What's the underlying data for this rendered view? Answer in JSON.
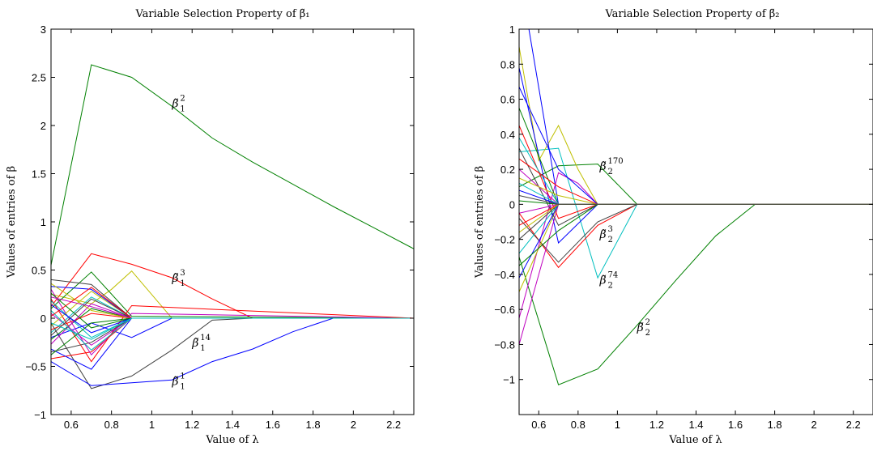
{
  "chart_data": [
    {
      "type": "line",
      "title": "Variable Selection Property of β̃₁",
      "xlabel": "Value of λ",
      "ylabel": "Values of entries of β",
      "xlim": [
        0.5,
        2.3
      ],
      "ylim": [
        -1,
        3
      ],
      "xticks": [
        0.6,
        0.8,
        1,
        1.2,
        1.4,
        1.6,
        1.8,
        2,
        2.2
      ],
      "xtick_labels": [
        "0.6",
        "0.8",
        "1",
        "1.2",
        "1.4",
        "1.6",
        "1.8",
        "2",
        "2.2"
      ],
      "yticks": [
        -1,
        -0.5,
        0,
        0.5,
        1,
        1.5,
        2,
        2.5,
        3
      ],
      "ytick_labels": [
        "−1",
        "−0.5",
        "0",
        "0.5",
        "1",
        "1.5",
        "2",
        "2.5",
        "3"
      ],
      "grid": false,
      "series": [
        {
          "color": "#008000",
          "x": [
            0.5,
            0.7,
            0.9,
            1.1,
            1.3,
            1.5,
            1.7,
            1.9,
            2.1,
            2.3
          ],
          "y": [
            0.55,
            2.63,
            2.5,
            2.2,
            1.87,
            1.62,
            1.39,
            1.16,
            0.94,
            0.72
          ]
        },
        {
          "color": "#ff0000",
          "x": [
            0.5,
            0.7,
            0.9,
            1.1,
            1.3,
            1.5,
            2.3
          ],
          "y": [
            0.12,
            0.67,
            0.56,
            0.42,
            0.2,
            0.0,
            0.0
          ]
        },
        {
          "color": "#bfbf00",
          "x": [
            0.5,
            0.7,
            0.8,
            0.9,
            1.1,
            2.3
          ],
          "y": [
            0.25,
            0.15,
            0.3,
            0.49,
            0.0,
            0.0
          ]
        },
        {
          "color": "#404040",
          "x": [
            0.5,
            0.7,
            0.9,
            1.1,
            1.3,
            1.5,
            2.3
          ],
          "y": [
            -0.05,
            -0.73,
            -0.6,
            -0.33,
            -0.02,
            0.0,
            0.0
          ]
        },
        {
          "color": "#0000ff",
          "x": [
            0.5,
            0.7,
            0.9,
            1.1,
            1.3,
            1.5,
            1.7,
            1.9,
            2.3
          ],
          "y": [
            -0.45,
            -0.7,
            -0.67,
            -0.64,
            -0.45,
            -0.32,
            -0.14,
            0.0,
            0.0
          ]
        },
        {
          "color": "#008000",
          "x": [
            0.5,
            0.7,
            0.9,
            2.3
          ],
          "y": [
            0.1,
            0.48,
            0.02,
            0.0
          ]
        },
        {
          "color": "#0000ff",
          "x": [
            0.5,
            0.7,
            0.9,
            1.1,
            2.3
          ],
          "y": [
            -0.2,
            -0.05,
            -0.2,
            0.0,
            0.0
          ]
        },
        {
          "color": "#ff0000",
          "x": [
            0.5,
            0.7,
            0.9,
            2.3
          ],
          "y": [
            -0.42,
            -0.35,
            0.0,
            0.0
          ]
        },
        {
          "color": "#bf00bf",
          "x": [
            0.5,
            0.7,
            0.9,
            2.3
          ],
          "y": [
            0.3,
            -0.38,
            0.05,
            0.0
          ]
        },
        {
          "color": "#00bfbf",
          "x": [
            0.5,
            0.7,
            0.9,
            2.3
          ],
          "y": [
            -0.15,
            0.22,
            0.0,
            0.0
          ]
        },
        {
          "color": "#0000ff",
          "x": [
            0.5,
            0.7,
            0.9,
            2.3
          ],
          "y": [
            -0.32,
            -0.53,
            0.0,
            0.0
          ]
        },
        {
          "color": "#404040",
          "x": [
            0.5,
            0.7,
            0.9,
            2.3
          ],
          "y": [
            0.4,
            0.35,
            0.0,
            0.0
          ]
        },
        {
          "color": "#ff0000",
          "x": [
            0.5,
            0.7,
            0.9,
            2.3
          ],
          "y": [
            0.2,
            -0.45,
            0.13,
            0.0
          ]
        },
        {
          "color": "#008000",
          "x": [
            0.5,
            0.7,
            0.9,
            2.3
          ],
          "y": [
            -0.22,
            0.1,
            0.0,
            0.0
          ]
        },
        {
          "color": "#bf00bf",
          "x": [
            0.5,
            0.7,
            0.9,
            2.3
          ],
          "y": [
            0.05,
            -0.28,
            0.0,
            0.0
          ]
        },
        {
          "color": "#00bfbf",
          "x": [
            0.5,
            0.7,
            0.9,
            2.3
          ],
          "y": [
            0.18,
            -0.2,
            0.0,
            0.0
          ]
        },
        {
          "color": "#bfbf00",
          "x": [
            0.5,
            0.7,
            0.9,
            2.3
          ],
          "y": [
            -0.08,
            0.28,
            0.0,
            0.0
          ]
        },
        {
          "color": "#404040",
          "x": [
            0.5,
            0.7,
            0.9,
            2.3
          ],
          "y": [
            -0.35,
            -0.25,
            0.0,
            0.0
          ]
        },
        {
          "color": "#0000ff",
          "x": [
            0.5,
            0.7,
            0.9,
            2.3
          ],
          "y": [
            0.33,
            0.3,
            0.0,
            0.0
          ]
        },
        {
          "color": "#ff0000",
          "x": [
            0.5,
            0.7,
            0.9,
            2.3
          ],
          "y": [
            -0.12,
            0.05,
            0.0,
            0.0
          ]
        },
        {
          "color": "#008000",
          "x": [
            0.5,
            0.7,
            0.9,
            2.3
          ],
          "y": [
            0.26,
            -0.1,
            0.0,
            0.0
          ]
        },
        {
          "color": "#bf00bf",
          "x": [
            0.5,
            0.7,
            0.9,
            2.3
          ],
          "y": [
            -0.27,
            0.15,
            0.0,
            0.0
          ]
        },
        {
          "color": "#00bfbf",
          "x": [
            0.5,
            0.7,
            0.9,
            2.3
          ],
          "y": [
            0.08,
            -0.33,
            0.0,
            0.0
          ]
        },
        {
          "color": "#bfbf00",
          "x": [
            0.5,
            0.7,
            0.9,
            2.3
          ],
          "y": [
            0.36,
            0.08,
            0.0,
            0.0
          ]
        },
        {
          "color": "#404040",
          "x": [
            0.5,
            0.7,
            0.9,
            2.3
          ],
          "y": [
            -0.18,
            0.2,
            0.0,
            0.0
          ]
        },
        {
          "color": "#0000ff",
          "x": [
            0.5,
            0.7,
            0.9,
            2.3
          ],
          "y": [
            0.14,
            -0.15,
            0.0,
            0.0
          ]
        },
        {
          "color": "#ff0000",
          "x": [
            0.5,
            0.7,
            0.9,
            2.3
          ],
          "y": [
            0.02,
            0.32,
            0.0,
            0.0
          ]
        },
        {
          "color": "#008000",
          "x": [
            0.5,
            0.7,
            0.9,
            2.3
          ],
          "y": [
            -0.38,
            -0.05,
            0.0,
            0.0
          ]
        },
        {
          "color": "#bf00bf",
          "x": [
            0.5,
            0.7,
            0.9,
            2.3
          ],
          "y": [
            0.22,
            0.12,
            0.0,
            0.0
          ]
        },
        {
          "color": "#00bfbf",
          "x": [
            0.5,
            0.7,
            0.9,
            2.3
          ],
          "y": [
            -0.05,
            -0.22,
            0.0,
            0.0
          ]
        }
      ],
      "annotations": [
        {
          "base": "β̃",
          "sub": "1",
          "sup": "2",
          "x": 1.1,
          "y": 2.23
        },
        {
          "base": "β̃",
          "sub": "1",
          "sup": "3",
          "x": 1.1,
          "y": 0.42
        },
        {
          "base": "β̃",
          "sub": "1",
          "sup": "14",
          "x": 1.2,
          "y": -0.25
        },
        {
          "base": "β̃",
          "sub": "1",
          "sup": "1",
          "x": 1.1,
          "y": -0.65
        }
      ]
    },
    {
      "type": "line",
      "title": "Variable Selection Property of β̃₂",
      "xlabel": "Value of λ",
      "ylabel": "Values of entries of β",
      "xlim": [
        0.5,
        2.3
      ],
      "ylim": [
        -1.2,
        1
      ],
      "xticks": [
        0.6,
        0.8,
        1,
        1.2,
        1.4,
        1.6,
        1.8,
        2,
        2.2
      ],
      "xtick_labels": [
        "0.6",
        "0.8",
        "1",
        "1.2",
        "1.4",
        "1.6",
        "1.8",
        "2",
        "2.2"
      ],
      "yticks": [
        -1,
        -0.8,
        -0.6,
        -0.4,
        -0.2,
        0,
        0.2,
        0.4,
        0.6,
        0.8,
        1
      ],
      "ytick_labels": [
        "−1",
        "−0.8",
        "−0.6",
        "−0.4",
        "−0.2",
        "0",
        "0.2",
        "0.4",
        "0.6",
        "0.8",
        "1"
      ],
      "grid": false,
      "series": [
        {
          "color": "#008000",
          "x": [
            0.5,
            0.7,
            0.9,
            1.1,
            1.3,
            1.5,
            1.7,
            2.3
          ],
          "y": [
            -0.3,
            -1.03,
            -0.94,
            -0.69,
            -0.43,
            -0.18,
            0.0,
            0.0
          ]
        },
        {
          "color": "#008000",
          "x": [
            0.5,
            0.7,
            0.9,
            1.1,
            2.3
          ],
          "y": [
            0.1,
            0.22,
            0.23,
            0.0,
            0.0
          ]
        },
        {
          "color": "#00bfbf",
          "x": [
            0.5,
            0.7,
            0.9,
            1.1,
            2.3
          ],
          "y": [
            0.3,
            0.32,
            -0.42,
            0.0,
            0.0
          ]
        },
        {
          "color": "#ff0000",
          "x": [
            0.5,
            0.7,
            0.9,
            1.1,
            2.3
          ],
          "y": [
            -0.05,
            -0.36,
            -0.12,
            0.0,
            0.0
          ]
        },
        {
          "color": "#404040",
          "x": [
            0.5,
            0.7,
            0.9,
            1.1,
            2.3
          ],
          "y": [
            -0.08,
            -0.33,
            -0.1,
            0.0,
            0.0
          ]
        },
        {
          "color": "#bfbf00",
          "x": [
            0.5,
            0.6,
            0.7,
            0.8,
            0.9,
            2.3
          ],
          "y": [
            0.9,
            0.25,
            0.45,
            0.2,
            0.0,
            0.0
          ]
        },
        {
          "color": "#0000ff",
          "x": [
            0.5,
            0.55,
            0.7,
            2.3
          ],
          "y": [
            1.0,
            1.0,
            0.0,
            0.0
          ]
        },
        {
          "color": "#0000ff",
          "x": [
            0.5,
            0.7,
            0.9,
            2.3
          ],
          "y": [
            0.78,
            -0.22,
            0.0,
            0.0
          ]
        },
        {
          "color": "#bf00bf",
          "x": [
            0.5,
            0.7,
            2.3
          ],
          "y": [
            -0.8,
            0.0,
            0.0
          ]
        },
        {
          "color": "#bf00bf",
          "x": [
            0.5,
            0.7,
            0.8,
            0.9,
            2.3
          ],
          "y": [
            -0.65,
            0.18,
            0.12,
            0.0,
            0.0
          ]
        },
        {
          "color": "#0000ff",
          "x": [
            0.5,
            0.7,
            0.9,
            2.3
          ],
          "y": [
            0.67,
            0.2,
            0.0,
            0.0
          ]
        },
        {
          "color": "#008000",
          "x": [
            0.5,
            0.7,
            2.3
          ],
          "y": [
            0.55,
            0.0,
            0.0
          ]
        },
        {
          "color": "#ff0000",
          "x": [
            0.5,
            0.7,
            0.9,
            2.3
          ],
          "y": [
            0.45,
            -0.08,
            0.0,
            0.0
          ]
        },
        {
          "color": "#00bfbf",
          "x": [
            0.5,
            0.7,
            2.3
          ],
          "y": [
            0.38,
            0.0,
            0.0
          ]
        },
        {
          "color": "#bfbf00",
          "x": [
            0.5,
            0.7,
            2.3
          ],
          "y": [
            -0.5,
            0.0,
            0.0
          ]
        },
        {
          "color": "#404040",
          "x": [
            0.5,
            0.7,
            0.9,
            2.3
          ],
          "y": [
            0.32,
            -0.12,
            0.0,
            0.0
          ]
        },
        {
          "color": "#0000ff",
          "x": [
            0.5,
            0.7,
            2.3
          ],
          "y": [
            -0.42,
            0.0,
            0.0
          ]
        },
        {
          "color": "#ff0000",
          "x": [
            0.5,
            0.7,
            0.9,
            2.3
          ],
          "y": [
            0.26,
            0.1,
            0.0,
            0.0
          ]
        },
        {
          "color": "#008000",
          "x": [
            0.5,
            0.7,
            0.9,
            2.3
          ],
          "y": [
            -0.35,
            -0.15,
            0.0,
            0.0
          ]
        },
        {
          "color": "#bf00bf",
          "x": [
            0.5,
            0.7,
            2.3
          ],
          "y": [
            0.2,
            0.0,
            0.0
          ]
        },
        {
          "color": "#00bfbf",
          "x": [
            0.5,
            0.7,
            2.3
          ],
          "y": [
            -0.28,
            0.0,
            0.0
          ]
        },
        {
          "color": "#bfbf00",
          "x": [
            0.5,
            0.7,
            0.9,
            2.3
          ],
          "y": [
            0.15,
            0.05,
            0.0,
            0.0
          ]
        },
        {
          "color": "#404040",
          "x": [
            0.5,
            0.7,
            2.3
          ],
          "y": [
            -0.2,
            0.0,
            0.0
          ]
        },
        {
          "color": "#0000ff",
          "x": [
            0.5,
            0.7,
            2.3
          ],
          "y": [
            0.08,
            0.0,
            0.0
          ]
        },
        {
          "color": "#ff0000",
          "x": [
            0.5,
            0.7,
            2.3
          ],
          "y": [
            -0.12,
            0.0,
            0.0
          ]
        },
        {
          "color": "#008000",
          "x": [
            0.5,
            0.7,
            2.3
          ],
          "y": [
            0.02,
            0.0,
            0.0
          ]
        },
        {
          "color": "#bf00bf",
          "x": [
            0.5,
            0.7,
            2.3
          ],
          "y": [
            -0.05,
            0.0,
            0.0
          ]
        },
        {
          "color": "#00bfbf",
          "x": [
            0.5,
            0.7,
            2.3
          ],
          "y": [
            0.12,
            0.0,
            0.0
          ]
        },
        {
          "color": "#bfbf00",
          "x": [
            0.5,
            0.7,
            2.3
          ],
          "y": [
            -0.16,
            0.0,
            0.0
          ]
        },
        {
          "color": "#404040",
          "x": [
            0.5,
            0.7,
            2.3
          ],
          "y": [
            0.05,
            0.0,
            0.0
          ]
        }
      ],
      "annotations": [
        {
          "base": "β̃",
          "sub": "2",
          "sup": "170",
          "x": 0.91,
          "y": 0.22
        },
        {
          "base": "β̃",
          "sub": "2",
          "sup": "3",
          "x": 0.91,
          "y": -0.17
        },
        {
          "base": "β̃",
          "sub": "2",
          "sup": "74",
          "x": 0.91,
          "y": -0.43
        },
        {
          "base": "β̃",
          "sub": "2",
          "sup": "2",
          "x": 1.1,
          "y": -0.7
        }
      ]
    }
  ]
}
